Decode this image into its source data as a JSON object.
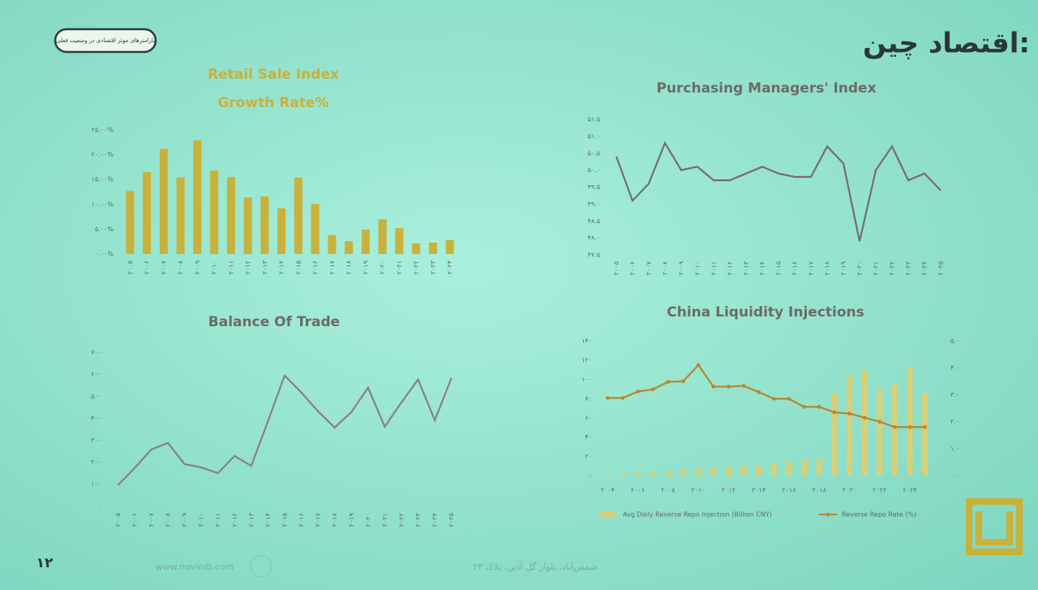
{
  "slide": {
    "title": "اقتصاد چین:",
    "badge": "پارامترهای موثر اقتصادی در وضعیت فعلی",
    "page_number": "۱۲",
    "website": "www.novinib.com",
    "address": "شمس‌آباد، بلوار گل آذین، پلاک ۲۳"
  },
  "chart_data": [
    {
      "type": "bar",
      "title": "Retail Sale Index",
      "subtitle": "Growth Rate%",
      "color": "#c9b13a",
      "title_color": "#c9b13a",
      "categories": [
        "۲۰۰۵",
        "۲۰۰۶",
        "۲۰۰۷",
        "۲۰۰۸",
        "۲۰۰۹",
        "۲۰۱۰",
        "۲۰۱۱",
        "۲۰۱۲",
        "۲۰۱۳",
        "۲۰۱۴",
        "۲۰۱۵",
        "۲۰۱۶",
        "۲۰۱۷",
        "۲۰۱۸",
        "۲۰۱۹",
        "۲۰۲۰",
        "۲۰۲۱",
        "۲۰۲۲",
        "۲۰۲۳",
        "۲۰۲۴"
      ],
      "values": [
        12.7,
        16.5,
        21.2,
        15.4,
        22.9,
        16.8,
        15.5,
        11.4,
        11.6,
        9.2,
        15.4,
        10.1,
        3.8,
        2.6,
        4.9,
        7.0,
        5.2,
        2.1,
        2.3,
        2.8
      ],
      "ylim": [
        0,
        25
      ],
      "yticks": [
        {
          "value": 0,
          "label": "۰.۰۰%"
        },
        {
          "value": 5,
          "label": "۵.۰۰%"
        },
        {
          "value": 10,
          "label": "۱۰.۰۰%"
        },
        {
          "value": 15,
          "label": "۱۵.۰۰%"
        },
        {
          "value": 20,
          "label": "۲۰.۰۰%"
        },
        {
          "value": 25,
          "label": "۲۵.۰۰%"
        }
      ]
    },
    {
      "type": "line",
      "title": "Purchasing Managers' Index",
      "color": "#7a6b6b",
      "title_color": "#6e6a66",
      "categories": [
        "۲۰۰۵",
        "۲۰۰۶",
        "۲۰۰۷",
        "۲۰۰۸",
        "۲۰۰۹",
        "۲۰۱۰",
        "۲۰۱۱",
        "۲۰۱۲",
        "۲۰۱۳",
        "۲۰۱۴",
        "۲۰۱۵",
        "۲۰۱۶",
        "۲۰۱۷",
        "۲۰۱۸",
        "۲۰۱۹",
        "۲۰۲۰",
        "۲۰۲۱",
        "۲۰۲۲",
        "۲۰۲۳",
        "۲۰۲۴",
        "۲۰۲۵"
      ],
      "values": [
        50.4,
        49.1,
        49.6,
        50.8,
        50.0,
        50.1,
        49.7,
        49.7,
        49.9,
        50.1,
        49.9,
        49.8,
        49.8,
        50.7,
        50.2,
        47.9,
        50.0,
        50.7,
        49.7,
        49.9,
        49.4
      ],
      "ylim": [
        47.5,
        51.5
      ],
      "yticks": [
        {
          "value": 47.5,
          "label": "۴۷.۵"
        },
        {
          "value": 48,
          "label": "۴۸.۰"
        },
        {
          "value": 48.5,
          "label": "۴۸.۵"
        },
        {
          "value": 49,
          "label": "۴۹.۰"
        },
        {
          "value": 49.5,
          "label": "۴۹.۵"
        },
        {
          "value": 50,
          "label": "۵۰.۰"
        },
        {
          "value": 50.5,
          "label": "۵۰.۵"
        },
        {
          "value": 51,
          "label": "۵۱.۰"
        },
        {
          "value": 51.5,
          "label": "۵۱.۵"
        }
      ]
    },
    {
      "type": "line",
      "title": "Balance Of Trade",
      "color": "#8a8080",
      "title_color": "#6e6a66",
      "categories": [
        "۲۰۰۵",
        "۲۰۰۶",
        "۲۰۰۷",
        "۲۰۰۸",
        "۲۰۰۹",
        "۲۰۱۰",
        "۲۰۱۱",
        "۲۰۱۲",
        "۲۰۱۳",
        "۲۰۱۴",
        "۲۰۱۵",
        "۲۰۱۶",
        "۲۰۱۷",
        "۲۰۱۸",
        "۲۰۱۹",
        "۲۰۲۰",
        "۲۰۲۱",
        "۲۰۲۲",
        "۲۰۲۳",
        "۲۰۲۴",
        "۲۰۲۵"
      ],
      "values": [
        96,
        173,
        258,
        288,
        192,
        177,
        151,
        229,
        184,
        387,
        594,
        517,
        432,
        358,
        428,
        539,
        362,
        472,
        576,
        391,
        583
      ],
      "ylim": [
        0,
        700
      ],
      "yticks": [
        {
          "value": 0,
          "label": "۰"
        },
        {
          "value": 100,
          "label": "۱۰۰"
        },
        {
          "value": 200,
          "label": "۲۰۰"
        },
        {
          "value": 300,
          "label": "۳۰۰"
        },
        {
          "value": 400,
          "label": "۴۰۰"
        },
        {
          "value": 500,
          "label": "۵۰۰"
        },
        {
          "value": 600,
          "label": "۶۰۰"
        },
        {
          "value": 700,
          "label": "۷۰۰"
        }
      ]
    },
    {
      "type": "combo",
      "title": "China Liquidity Injections",
      "title_color": "#6e6a66",
      "categories": [
        "۲۰۰۴",
        null,
        "۲۰۰۶",
        null,
        "۲۰۰۸",
        null,
        "۲۰۱۰",
        null,
        "۲۰۱۲",
        null,
        "۲۰۱۴",
        null,
        "۲۰۱۶",
        null,
        "۲۰۱۸",
        null,
        "۲۰۲۰",
        null,
        "۲۰۲۲",
        null,
        "۲۰۲۴",
        null
      ],
      "series": [
        {
          "name": "Avg Daily Reverse Repo Injection (Billion CNY)",
          "type": "bar",
          "color": "#d9cf78",
          "values": [
            1,
            2,
            3,
            4,
            5,
            6,
            7,
            8,
            9,
            10,
            11,
            13,
            15,
            16,
            18,
            86,
            104,
            110,
            90,
            95,
            113,
            86
          ]
        },
        {
          "name": "Reverse Repo Rate (%)",
          "type": "line",
          "axis": "y2",
          "color": "#b8862f",
          "values": [
            2.88,
            2.88,
            3.12,
            3.2,
            3.48,
            3.5,
            4.1,
            3.3,
            3.3,
            3.33,
            3.1,
            2.85,
            2.85,
            2.55,
            2.55,
            2.35,
            2.3,
            2.15,
            2.0,
            1.8,
            1.8,
            1.8
          ]
        }
      ],
      "ylim": [
        0,
        140
      ],
      "yticks": [
        {
          "value": 0,
          "label": "۰"
        },
        {
          "value": 20,
          "label": "۲۰"
        },
        {
          "value": 40,
          "label": "۴۰"
        },
        {
          "value": 60,
          "label": "۶۰"
        },
        {
          "value": 80,
          "label": "۸۰"
        },
        {
          "value": 100,
          "label": "۱۰۰"
        },
        {
          "value": 120,
          "label": "۱۲۰"
        },
        {
          "value": 140,
          "label": "۱۴۰"
        }
      ],
      "y2lim": [
        0,
        5
      ],
      "y2ticks": [
        {
          "value": 0,
          "label": "۰.۰"
        },
        {
          "value": 1,
          "label": "۱.۰"
        },
        {
          "value": 2,
          "label": "۲.۰"
        },
        {
          "value": 3,
          "label": "۳.۰"
        },
        {
          "value": 4,
          "label": "۴.۰"
        },
        {
          "value": 5,
          "label": "۵.۰"
        }
      ]
    }
  ]
}
